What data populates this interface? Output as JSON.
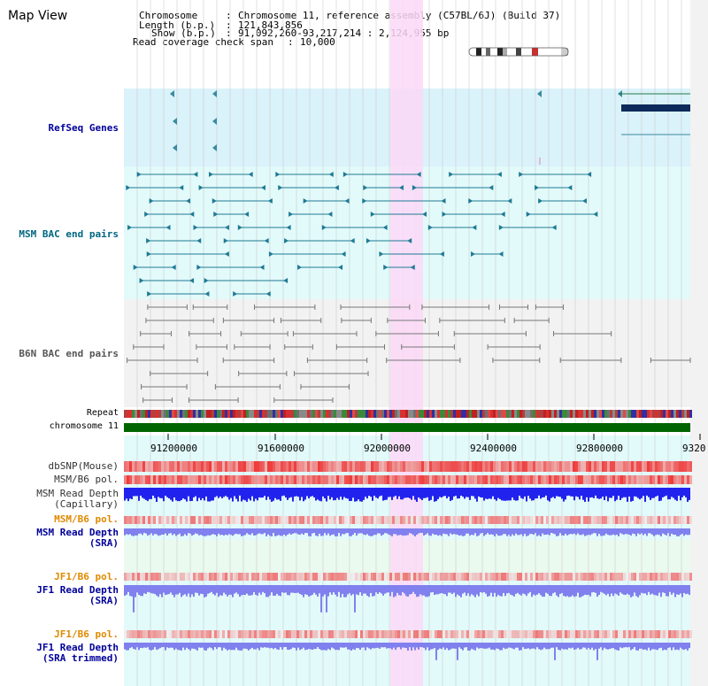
{
  "window": {
    "title": "Map View"
  },
  "info": {
    "chromosome_key": "Chromosome",
    "chromosome_value": "Chromosome 11, reference assembly (C57BL/6J) (Build 37)",
    "length_key": "Length (b.p.)",
    "length_value": "121,843,856",
    "show_key": "Show (b.p.)",
    "show_value": "91,092,260-93,217,214 : 2,124,955 bp",
    "coverage_key": "Read coverage check span",
    "coverage_value": "10,000"
  },
  "tracks": {
    "refseq": {
      "label": "RefSeq Genes"
    },
    "msm_bac": {
      "label": "MSM BAC end pairs"
    },
    "b6n_bac": {
      "label": "B6N BAC end pairs"
    },
    "repeat": {
      "label": "Repeat"
    },
    "chromosome": {
      "label": "chromosome 11"
    },
    "dbsnp": {
      "label": "dbSNP(Mouse)"
    },
    "msm_b6_pol_1": {
      "label": "MSM/B6 pol."
    },
    "msm_depth_cap": {
      "label": "MSM Read Depth",
      "sub": "(Capillary)"
    },
    "msm_b6_pol_2": {
      "label": "MSM/B6 pol."
    },
    "msm_depth_sra": {
      "label": "MSM Read Depth",
      "sub": "(SRA)"
    },
    "jf1_b6_pol_1": {
      "label": "JF1/B6 pol."
    },
    "jf1_depth_sra": {
      "label": "JF1 Read Depth",
      "sub": "(SRA)"
    },
    "jf1_b6_pol_2": {
      "label": "JF1/B6 pol."
    },
    "jf1_depth_trim": {
      "label": "JF1 Read Depth",
      "sub": "(SRA trimmed)"
    }
  },
  "ruler": {
    "ticks": [
      "91200000",
      "91600000",
      "92000000",
      "92400000",
      "92800000",
      "9320"
    ]
  },
  "colors": {
    "label_dark_blue": "#000099",
    "label_teal": "#006680",
    "label_gray": "#555555",
    "label_orange": "#e08a00",
    "panel_blue": "#daf2fa",
    "panel_cyan": "#e2fafa",
    "highlight_pink": "#fbd8f7",
    "msm_feature": "#1f7a94",
    "b6n_feature": "#777777",
    "chromosome_green": "#006400",
    "depth_blue": "#2222ee",
    "depth_sra": "#8080ee"
  }
}
